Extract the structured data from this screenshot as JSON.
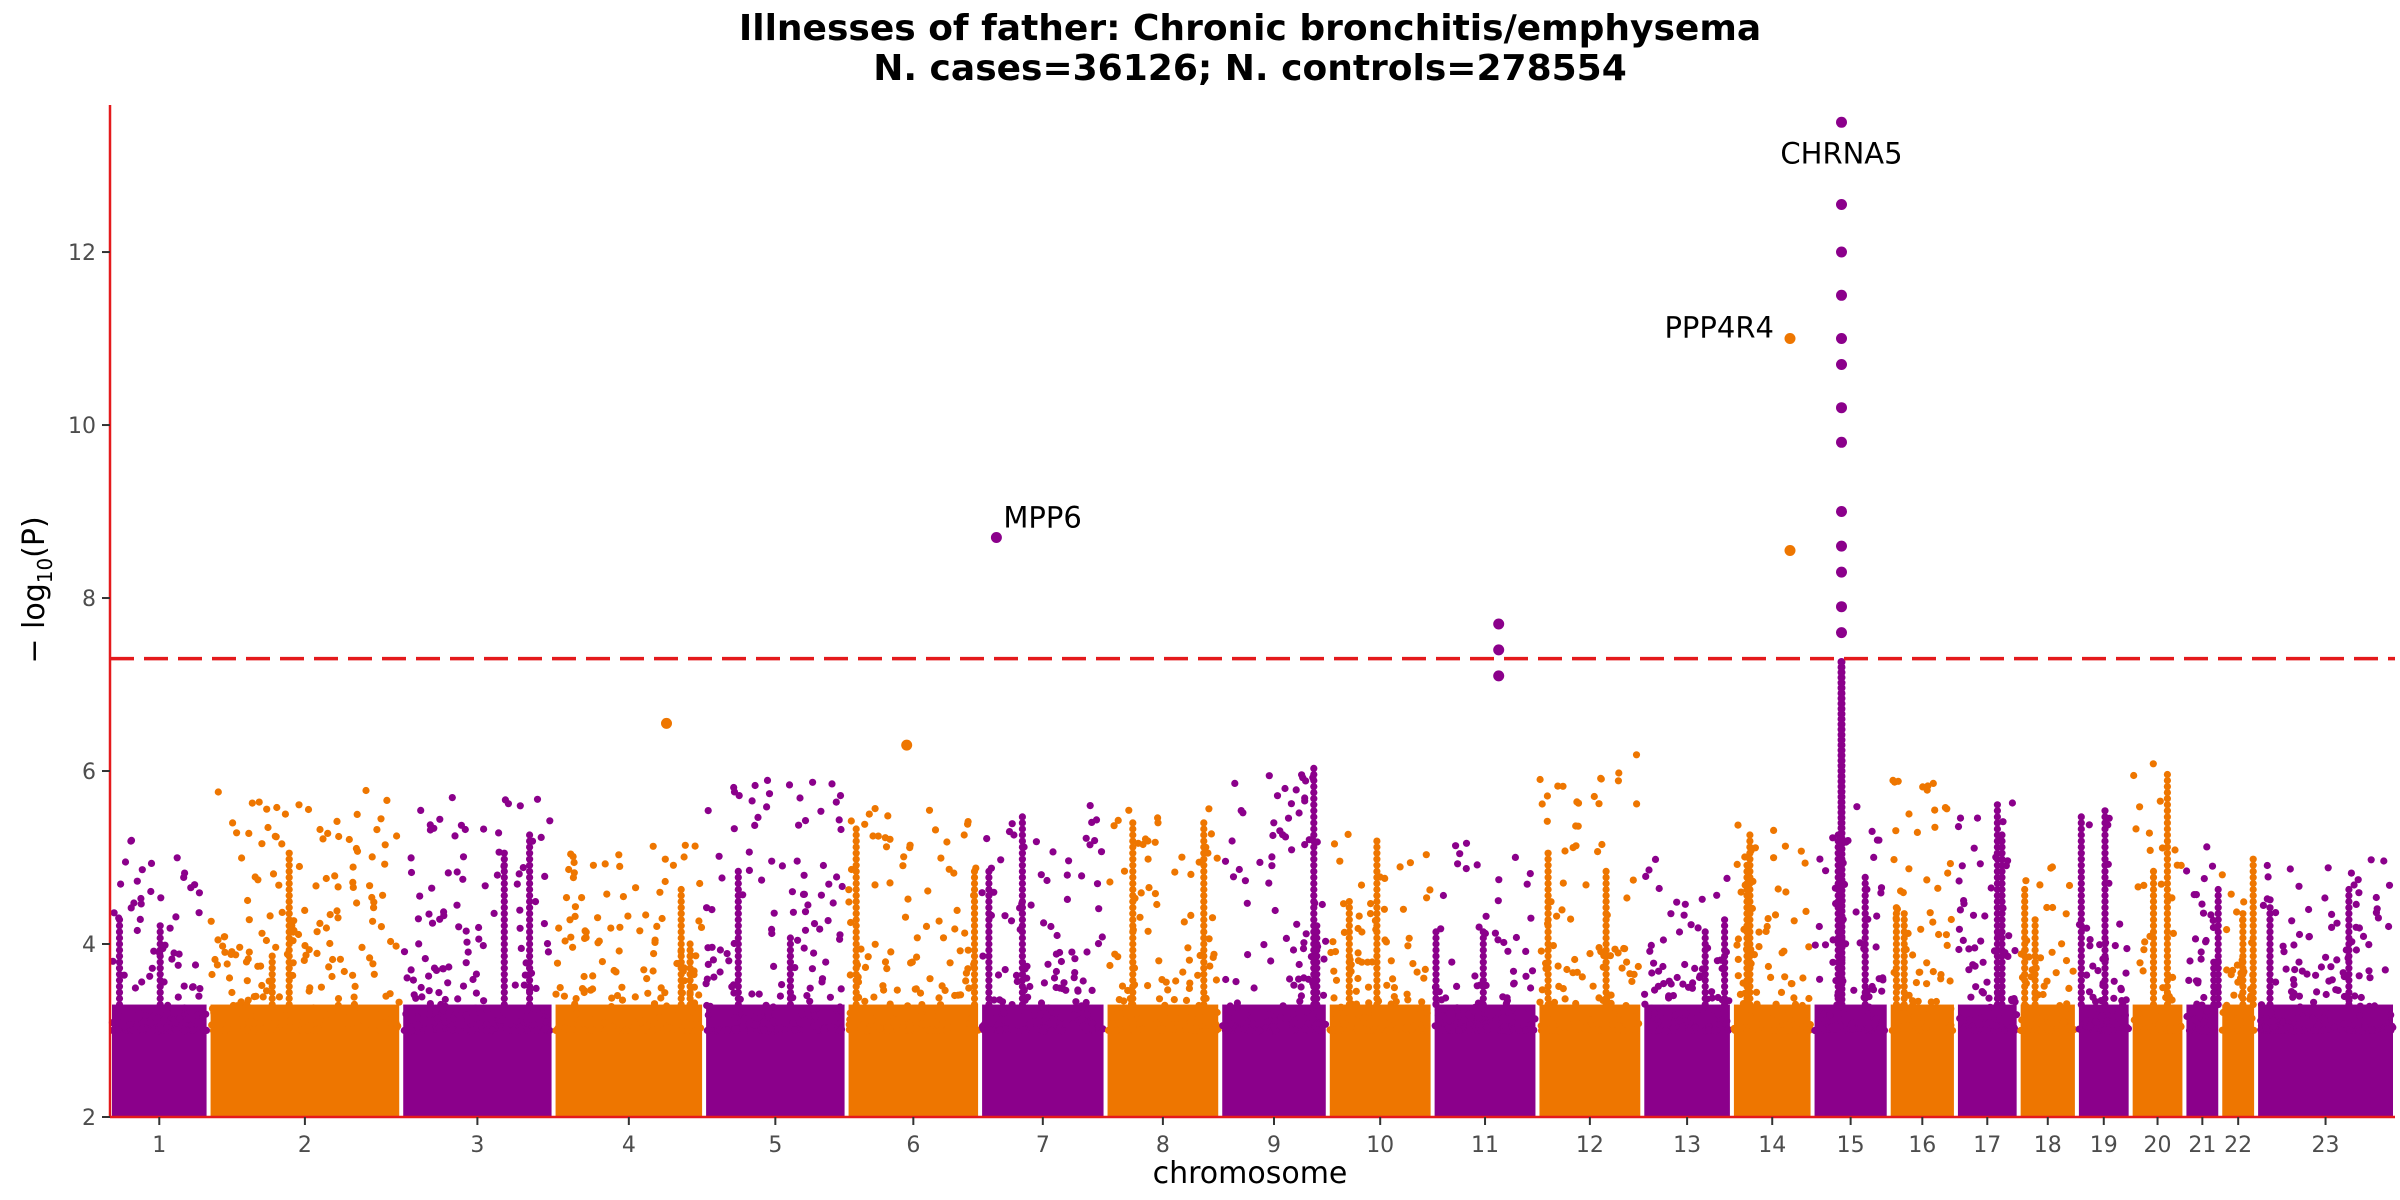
{
  "chart_data": {
    "type": "scatter",
    "title": "Illnesses of father: Chronic bronchitis/emphysema",
    "subtitle": "N. cases=36126; N. controls=278554",
    "xlabel": "chromosome",
    "ylabel_main": "− log",
    "ylabel_sub": "10",
    "ylabel_tail": "(P)",
    "ylim": [
      2,
      13.7
    ],
    "yticks": [
      2,
      4,
      6,
      8,
      10,
      12
    ],
    "significance_threshold": 7.3,
    "grid": false,
    "colors": {
      "odd": "#8B008B",
      "even": "#EE7600",
      "axis": "#E41A1C",
      "threshold": "#E41A1C"
    },
    "chromosomes": [
      {
        "label": "1",
        "start": 0,
        "end": 1.1
      },
      {
        "label": "2",
        "start": 1.1,
        "end": 3.25
      },
      {
        "label": "3",
        "start": 3.25,
        "end": 4.95
      },
      {
        "label": "4",
        "start": 4.95,
        "end": 6.63
      },
      {
        "label": "5",
        "start": 6.63,
        "end": 8.22
      },
      {
        "label": "6",
        "start": 8.22,
        "end": 9.71
      },
      {
        "label": "7",
        "start": 9.71,
        "end": 11.11
      },
      {
        "label": "8",
        "start": 11.11,
        "end": 12.39
      },
      {
        "label": "9",
        "start": 12.39,
        "end": 13.59
      },
      {
        "label": "10",
        "start": 13.59,
        "end": 14.76
      },
      {
        "label": "11",
        "start": 14.76,
        "end": 15.93
      },
      {
        "label": "12",
        "start": 15.93,
        "end": 17.1
      },
      {
        "label": "13",
        "start": 17.1,
        "end": 18.1
      },
      {
        "label": "14",
        "start": 18.1,
        "end": 19.0
      },
      {
        "label": "15",
        "start": 19.0,
        "end": 19.85
      },
      {
        "label": "16",
        "start": 19.85,
        "end": 20.6
      },
      {
        "label": "17",
        "start": 20.6,
        "end": 21.3
      },
      {
        "label": "18",
        "start": 21.3,
        "end": 21.95
      },
      {
        "label": "19",
        "start": 21.95,
        "end": 22.55
      },
      {
        "label": "20",
        "start": 22.55,
        "end": 23.15
      },
      {
        "label": "21",
        "start": 23.15,
        "end": 23.55
      },
      {
        "label": "22",
        "start": 23.55,
        "end": 23.95
      },
      {
        "label": "23",
        "start": 23.95,
        "end": 25.5
      }
    ],
    "background_max": [
      5.3,
      5.8,
      5.7,
      5.2,
      6.0,
      5.6,
      5.8,
      5.6,
      6.1,
      5.3,
      5.2,
      6.2,
      5.0,
      5.4,
      5.6,
      6.0,
      5.8,
      4.9,
      5.6,
      6.3,
      5.2,
      5.0,
      5.0
    ],
    "hits": [
      {
        "chrom": "6",
        "pos": 0.45,
        "y": 6.3
      },
      {
        "chrom": "4",
        "pos": 0.75,
        "y": 6.55
      },
      {
        "chrom": "7",
        "pos": 0.13,
        "y": 8.7
      },
      {
        "chrom": "11",
        "pos": 0.63,
        "y": 7.7
      },
      {
        "chrom": "11",
        "pos": 0.63,
        "y": 7.4
      },
      {
        "chrom": "11",
        "pos": 0.63,
        "y": 7.1
      },
      {
        "chrom": "14",
        "pos": 0.72,
        "y": 11.0
      },
      {
        "chrom": "14",
        "pos": 0.72,
        "y": 8.55
      },
      {
        "chrom": "15",
        "pos": 0.38,
        "y": 13.5
      },
      {
        "chrom": "15",
        "pos": 0.38,
        "y": 12.55
      },
      {
        "chrom": "15",
        "pos": 0.38,
        "y": 12.0
      },
      {
        "chrom": "15",
        "pos": 0.38,
        "y": 11.5
      },
      {
        "chrom": "15",
        "pos": 0.38,
        "y": 11.0
      },
      {
        "chrom": "15",
        "pos": 0.38,
        "y": 10.7
      },
      {
        "chrom": "15",
        "pos": 0.38,
        "y": 10.2
      },
      {
        "chrom": "15",
        "pos": 0.38,
        "y": 9.8
      },
      {
        "chrom": "15",
        "pos": 0.38,
        "y": 9.0
      },
      {
        "chrom": "15",
        "pos": 0.38,
        "y": 8.6
      },
      {
        "chrom": "15",
        "pos": 0.38,
        "y": 8.3
      },
      {
        "chrom": "15",
        "pos": 0.38,
        "y": 7.9
      },
      {
        "chrom": "15",
        "pos": 0.38,
        "y": 7.6
      }
    ],
    "annotations": [
      {
        "label": "CHRNA5",
        "chrom": "15",
        "pos": 0.38,
        "y": 13.5
      },
      {
        "label": "PPP4R4",
        "chrom": "14",
        "pos": 0.72,
        "y": 11.0
      },
      {
        "label": "MPP6",
        "chrom": "7",
        "pos": 0.13,
        "y": 8.7
      }
    ]
  }
}
